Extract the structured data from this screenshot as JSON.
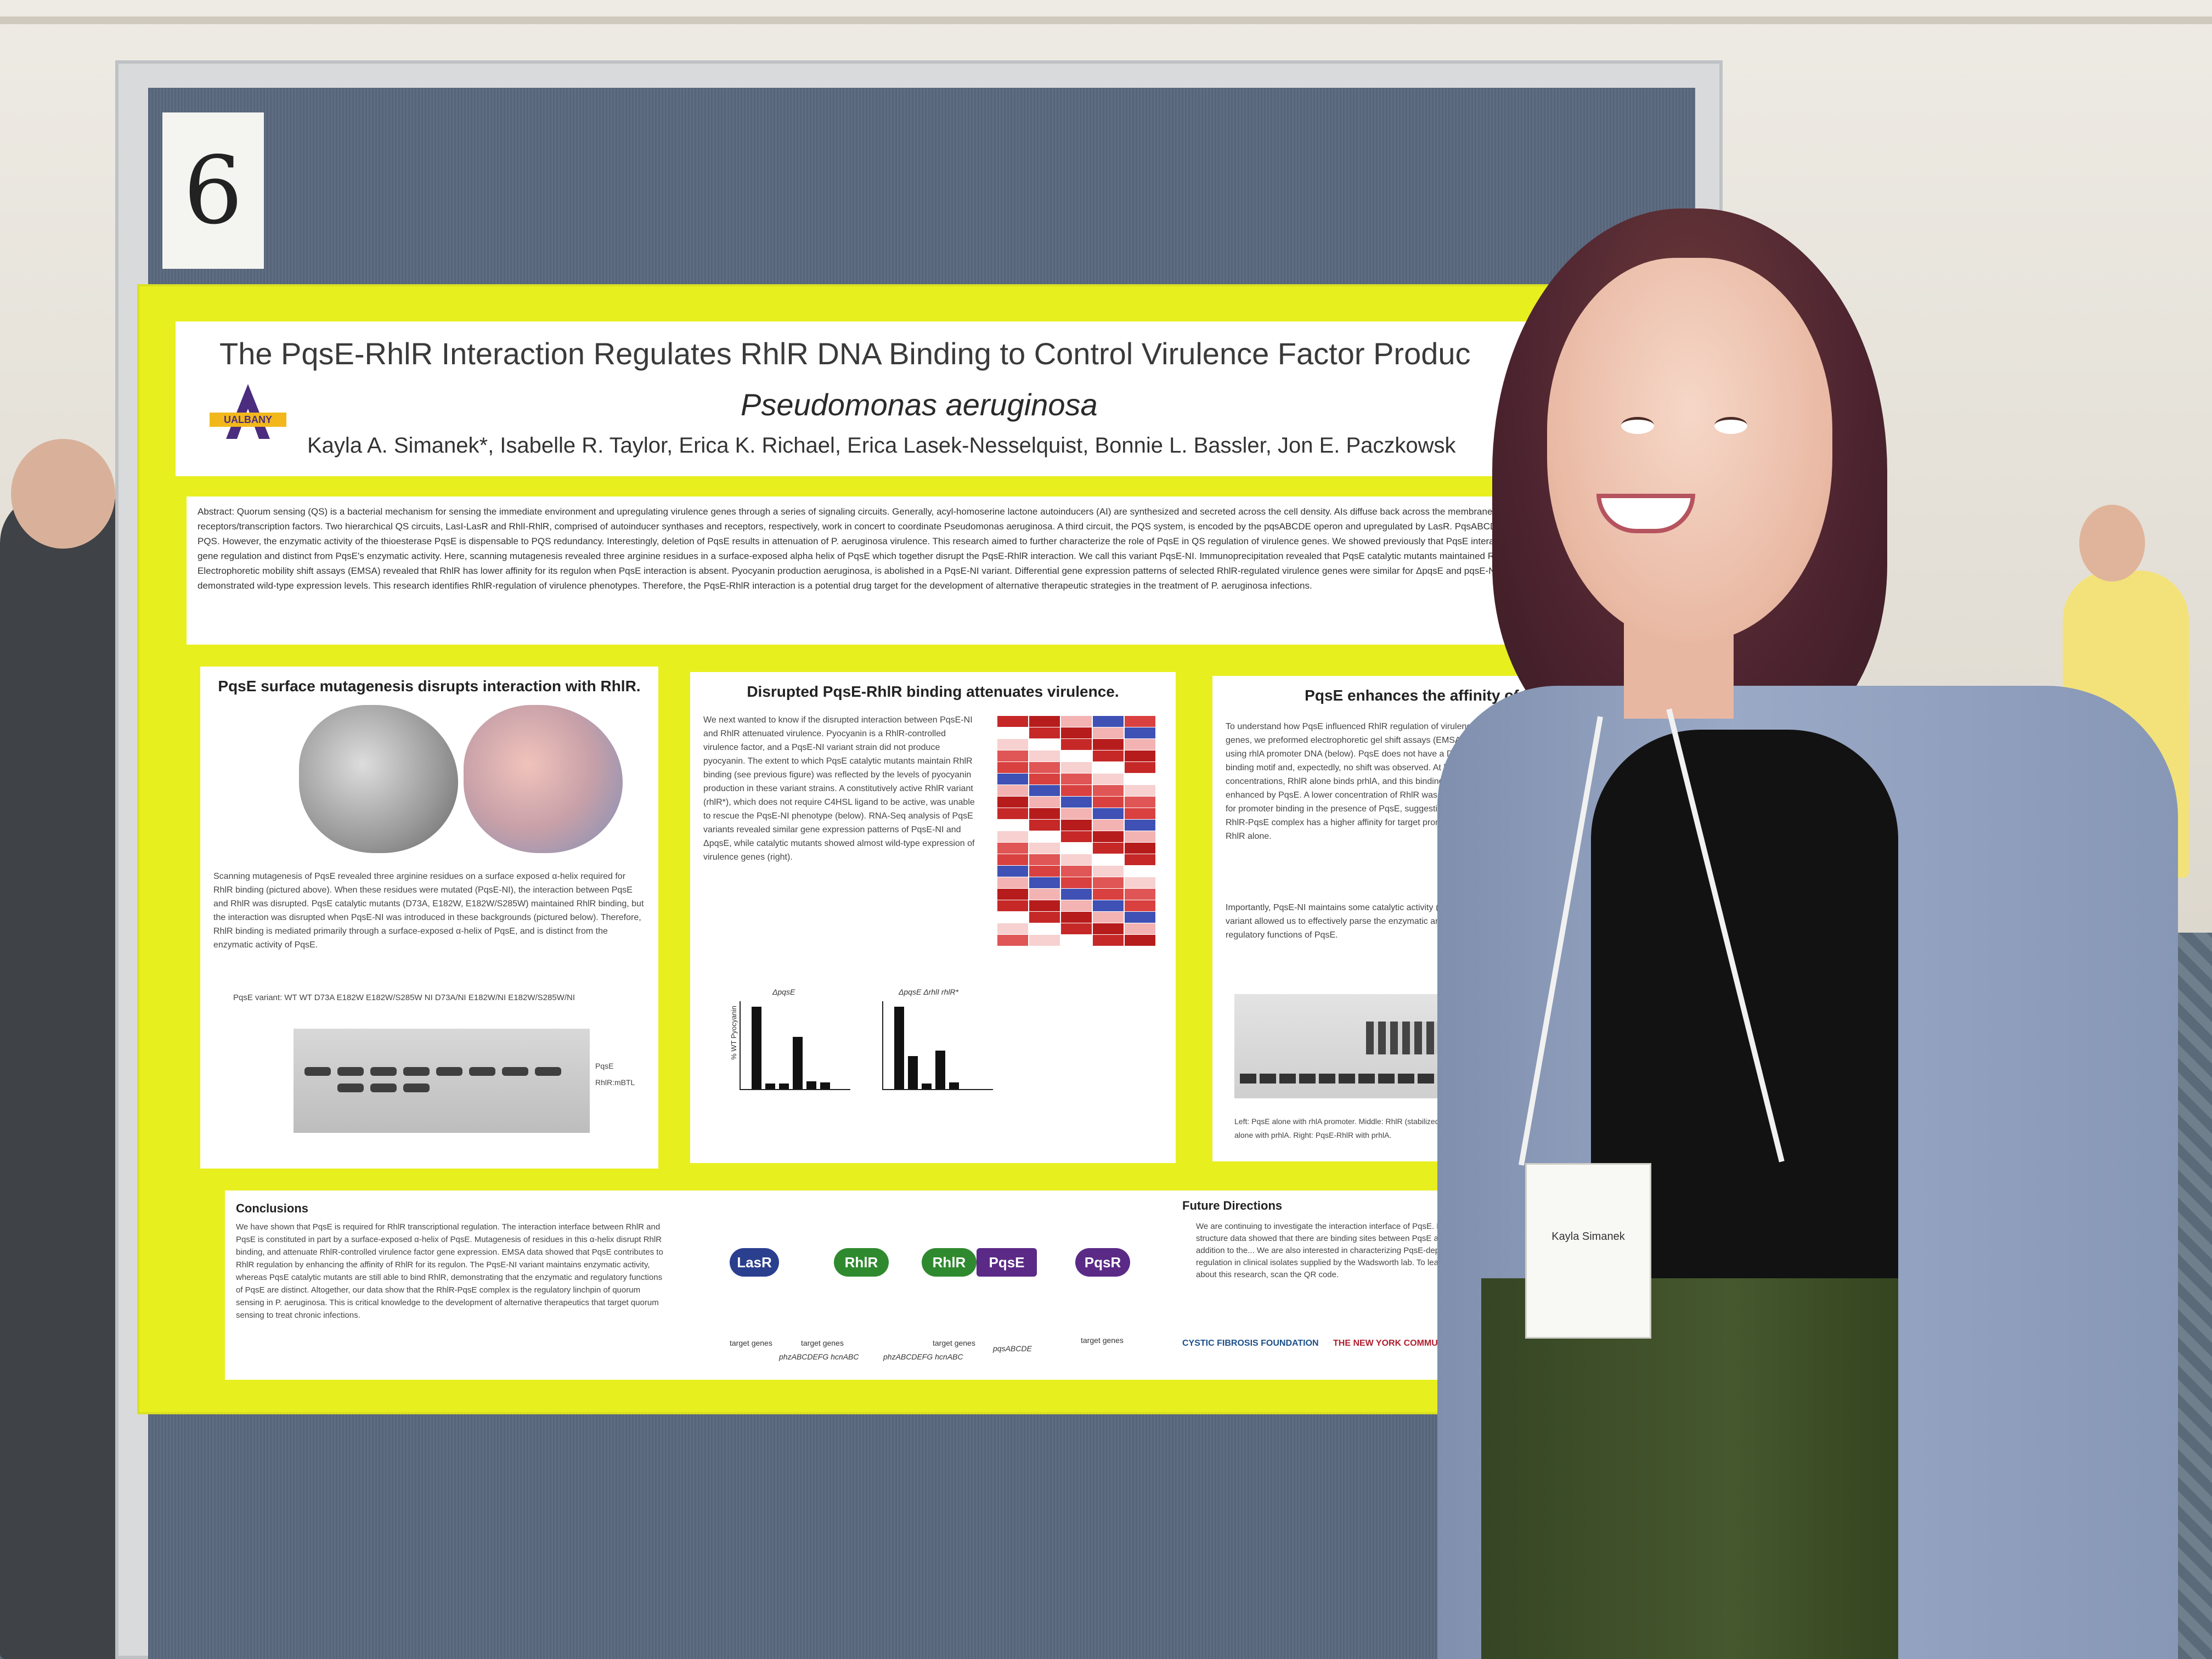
{
  "poster": {
    "board_number": "6",
    "title": "The PqsE-RhlR Interaction Regulates RhlR DNA Binding to Control Virulence Factor Produc",
    "subtitle": "Pseudomonas aeruginosa",
    "authors": "Kayla A. Simanek*, Isabelle R. Taylor, Erica K. Richael, Erica Lasek-Nesselquist, Bonnie L. Bassler, Jon E. Paczkowsk",
    "logo_text": "UALBANY",
    "abstract": "Abstract: Quorum sensing (QS) is a bacterial mechanism for sensing the immediate environment and upregulating virulence genes through a series of signaling circuits. Generally, acyl-homoserine lactone autoinducers (AI) are synthesized and secreted across the cell density. AIs diffuse back across the membrane where they bind cytosolic receptors/transcription factors. Two hierarchical QS circuits, LasI-LasR and RhlI-RhlR, comprised of autoinducer synthases and receptors, respectively, work in concert to coordinate Pseudomonas aeruginosa. A third circuit, the PQS system, is encoded by the pqsABCDE operon and upregulated by LasR. PqsABCD are involved in biosynthesis of the AI PQS. However, the enzymatic activity of the thioesterase PqsE is dispensable to PQS redundancy. Interestingly, deletion of PqsE results in attenuation of P. aeruginosa virulence. This research aimed to further characterize the role of PqsE in QS regulation of virulence genes. We showed previously that PqsE interacts with RhlR, and that PqsE RhlR gene regulation and distinct from PqsE's enzymatic activity. Here, scanning mutagenesis revealed three arginine residues in a surface-exposed alpha helix of PqsE which together disrupt the PqsE-RhlR interaction. We call this variant PqsE-NI. Immunoprecipitation revealed that PqsE catalytic mutants maintained RhlR interaction while PqsE-NI did not. Electrophoretic mobility shift assays (EMSA) revealed that RhlR has lower affinity for its regulon when PqsE interaction is absent. Pyocyanin production aeruginosa, is abolished in a PqsE-NI variant. Differential gene expression patterns of selected RhlR-regulated virulence genes were similar for ΔpqsE and pqsE-NI variants, while catalytic variants demonstrated wild-type expression levels. This research identifies RhlR-regulation of virulence phenotypes. Therefore, the PqsE-RhlR interaction is a potential drug target for the development of alternative therapeutic strategies in the treatment of P. aeruginosa infections.",
    "panel1": {
      "heading": "PqsE surface mutagenesis disrupts interaction with RhlR.",
      "text": "Scanning mutagenesis of PqsE revealed three arginine residues on a surface exposed α-helix required for RhlR binding (pictured above). When these residues were mutated (PqsE-NI), the interaction between PqsE and RhlR was disrupted. PqsE catalytic mutants (D73A, E182W, E182W/S285W) maintained RhlR binding, but the interaction was disrupted when PqsE-NI was introduced in these backgrounds (pictured below). Therefore, RhlR binding is mediated primarily through a surface-exposed α-helix of PqsE, and is distinct from the enzymatic activity of PqsE.",
      "gel_header": "PqsE variant:  WT   WT   D73A  E182W  E182W/S285W  NI   D73A/NI  E182W/NI  E182W/S285W/NI",
      "gel_labels": [
        "PqsE",
        "RhlR:mBTL"
      ]
    },
    "panel2": {
      "heading": "Disrupted PqsE-RhlR binding attenuates virulence.",
      "text": "We next wanted to know if the disrupted interaction between PqsE-NI and RhlR attenuated virulence. Pyocyanin is a RhlR-controlled virulence factor, and a PqsE-NI variant strain did not produce pyocyanin. The extent to which PqsE catalytic mutants maintain RhlR binding (see previous figure) was reflected by the levels of pyocyanin production in these variant strains. A constitutively active RhlR variant (rhlR*), which does not require C4HSL ligand to be active, was unable to rescue the PqsE-NI phenotype (below). RNA-Seq analysis of PqsE variants revealed similar gene expression patterns of PqsE-NI and ΔpqsE, while catalytic mutants showed almost wild-type expression of virulence genes (right).",
      "chart_titles": [
        "ΔpqsE",
        "ΔpqsE ΔrhlI rhlR*"
      ],
      "y_label": "% WT Pyocyanin"
    },
    "panel3": {
      "heading": "PqsE enhances the affinity of RhlR",
      "text": "To understand how PqsE influenced RhlR regulation of virulence genes, we preformed electrophoretic gel shift assays (EMSA) using rhlA promoter DNA (below). PqsE does not have a DNA binding motif and, expectedly, no shift was observed. At high concentrations, RhlR alone binds prhlA, and this binding is enhanced by PqsE. A lower concentration of RhlR was required for promoter binding in the presence of PqsE, suggesting that the RhlR-PqsE complex has a higher affinity for target promoters than RhlR alone.",
      "text2": "Importantly, PqsE-NI maintains some catalytic activity (right). This variant allowed us to effectively parse the enzymatic and regulatory functions of PqsE.",
      "caption": "Left: PqsE alone with rhlA promoter. Middle: RhlR (stabilized with mBTL) alone with prhlA. Right: PqsE-RhlR with prhlA."
    },
    "conclusions": {
      "heading": "Conclusions",
      "text": "We have shown that PqsE is required for RhlR transcriptional regulation. The interaction interface between RhlR and PqsE is constituted in part by a surface-exposed α-helix of PqsE. Mutagenesis of residues in this α-helix disrupt RhlR binding, and attenuate RhlR-controlled virulence factor gene expression. EMSA data showed that PqsE contributes to RhlR regulation by enhancing the affinity of RhlR for its regulon. The PqsE-NI variant maintains enzymatic activity, whereas PqsE catalytic mutants are still able to bind RhlR, demonstrating that the enzymatic and regulatory functions of PqsE are distinct. Altogether, our data show that the RhlR-PqsE complex is the regulatory linchpin of quorum sensing in P. aeruginosa. This is critical knowledge to the development of alternative therapeutics that target quorum sensing to treat chronic infections.",
      "nodes": [
        "LasR",
        "RhlR",
        "RhlR",
        "PqsE",
        "PqsR"
      ],
      "targets": [
        "target genes",
        "target genes",
        "target genes",
        "phzABCDEFG hcnABC",
        "phzABCDEFG hcnABC",
        "pqsABCDE",
        "target genes"
      ]
    },
    "future": {
      "heading": "Future Directions",
      "text": "We are continuing to investigate the interaction interface of PqsE. Preliminary structure data showed that there are binding sites between PqsE and RhlR in addition to the... We are also interested in characterizing PqsE-dependent regulation in clinical isolates supplied by the Wadsworth lab. To learn more about this research, scan the QR code.",
      "sponsors": [
        "CYSTIC FIBROSIS FOUNDATION",
        "THE NEW YORK COMMUNITY TRUST"
      ]
    }
  },
  "badge": {
    "name": "Kayla Simanek"
  },
  "colors": {
    "poster_border": "#e7ef1f",
    "ualbany_purple": "#4b2c7f",
    "ualbany_gold": "#f2b81b",
    "lasr": "#2b3f8f",
    "rhlr": "#2f8a2f",
    "pqse": "#5b2a86",
    "pqsr": "#5b2a86"
  }
}
